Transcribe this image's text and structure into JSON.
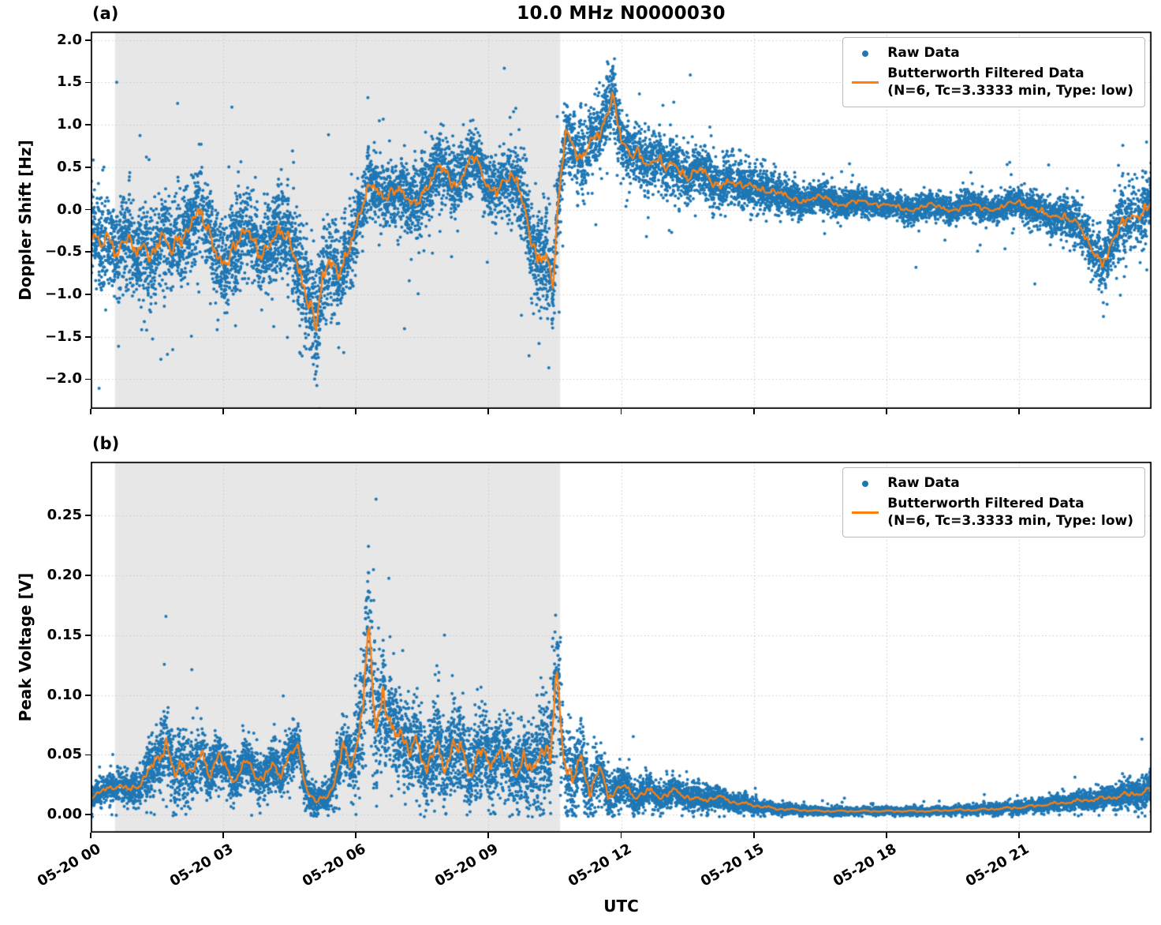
{
  "figure": {
    "title": "10.0 MHz N0000030",
    "xlabel": "UTC",
    "panels": {
      "a": {
        "tag": "(a)"
      },
      "b": {
        "tag": "(b)"
      }
    },
    "colors": {
      "raw": "#1f77b4",
      "filtered": "#ff7f0e",
      "shade": "#e7e7e7",
      "grid": "#c9c9c9",
      "spine": "#000000",
      "background": "#ffffff"
    }
  },
  "legend": {
    "raw_label": "Raw Data",
    "filtered_label": "Butterworth Filtered Data",
    "filtered_sublabel": "(N=6, Tc=3.3333 min, Type: low)"
  },
  "chart_data": [
    {
      "type": "scatter",
      "panel": "a",
      "title": "10.0 MHz N0000030",
      "ylabel": "Doppler Shift [Hz]",
      "xlabel": "UTC",
      "xlim_hours": [
        0,
        24
      ],
      "ylim": [
        -2.35,
        2.1
      ],
      "xticks_hours": [
        0,
        3,
        6,
        9,
        12,
        15,
        18,
        21
      ],
      "xtick_labels": [
        "05-20 00",
        "05-20 03",
        "05-20 06",
        "05-20 09",
        "05-20 12",
        "05-20 15",
        "05-20 18",
        "05-20 21"
      ],
      "yticks": [
        2.0,
        1.5,
        1.0,
        0.5,
        0.0,
        -0.5,
        -1.0,
        -1.5,
        -2.0
      ],
      "ytick_labels": [
        "2.0",
        "1.5",
        "1.0",
        "0.5",
        "0.0",
        "−0.5",
        "−1.0",
        "−1.5",
        "−2.0"
      ],
      "grid": true,
      "legend_position": "upper right",
      "shaded_region_hours": [
        0.55,
        10.62
      ],
      "series": [
        {
          "name": "Raw Data",
          "type": "scatter",
          "color": "#1f77b4"
        },
        {
          "name": "Butterworth Filtered Data (N=6, Tc=3.3333 min, Type: low)",
          "type": "line",
          "color": "#ff7f0e",
          "x_hours": [
            0,
            0.2,
            0.4,
            0.6,
            0.8,
            1.0,
            1.2,
            1.4,
            1.6,
            1.8,
            2.0,
            2.2,
            2.35,
            2.5,
            2.65,
            2.8,
            3.0,
            3.2,
            3.4,
            3.6,
            3.8,
            4.0,
            4.2,
            4.4,
            4.6,
            4.8,
            4.95,
            5.1,
            5.25,
            5.4,
            5.6,
            5.8,
            6.0,
            6.2,
            6.35,
            6.5,
            6.7,
            6.9,
            7.1,
            7.3,
            7.5,
            7.7,
            7.9,
            8.1,
            8.3,
            8.5,
            8.7,
            8.9,
            9.1,
            9.3,
            9.5,
            9.7,
            9.9,
            10.1,
            10.3,
            10.45,
            10.6,
            10.75,
            10.9,
            11.1,
            11.3,
            11.5,
            11.65,
            11.8,
            12.0,
            12.2,
            12.4,
            12.6,
            12.8,
            13.0,
            13.2,
            13.5,
            13.8,
            14.1,
            14.4,
            14.7,
            15.0,
            15.4,
            15.8,
            16.2,
            16.6,
            17.0,
            17.5,
            18.0,
            18.5,
            19.0,
            19.5,
            20.0,
            20.5,
            21.0,
            21.4,
            21.7,
            22.0,
            22.3,
            22.6,
            22.9,
            23.2,
            23.5,
            23.8,
            24.0
          ],
          "y": [
            -0.3,
            -0.45,
            -0.25,
            -0.5,
            -0.35,
            -0.55,
            -0.4,
            -0.5,
            -0.3,
            -0.55,
            -0.35,
            -0.2,
            0.0,
            -0.1,
            -0.3,
            -0.5,
            -0.6,
            -0.45,
            -0.35,
            -0.3,
            -0.5,
            -0.4,
            -0.3,
            -0.35,
            -0.5,
            -0.8,
            -1.1,
            -1.4,
            -0.9,
            -0.6,
            -0.7,
            -0.5,
            -0.25,
            0.1,
            0.35,
            0.25,
            0.15,
            0.2,
            0.15,
            0.1,
            0.2,
            0.3,
            0.5,
            0.4,
            0.3,
            0.5,
            0.6,
            0.35,
            0.25,
            0.3,
            0.35,
            0.25,
            -0.15,
            -0.55,
            -0.6,
            -0.95,
            0.2,
            1.0,
            0.8,
            0.55,
            0.75,
            0.9,
            1.1,
            1.4,
            0.8,
            0.6,
            0.7,
            0.55,
            0.6,
            0.45,
            0.55,
            0.4,
            0.45,
            0.3,
            0.35,
            0.25,
            0.3,
            0.2,
            0.15,
            0.1,
            0.15,
            0.05,
            0.1,
            0.05,
            0.0,
            0.05,
            0.0,
            0.05,
            0.0,
            0.1,
            0.0,
            -0.1,
            -0.05,
            -0.15,
            -0.45,
            -0.6,
            -0.3,
            -0.1,
            0.0,
            0.1
          ]
        }
      ],
      "raw_scatter_model": {
        "seed": 1337,
        "n_points": 12000,
        "raw_max": 1.9,
        "raw_min": -2.15,
        "envelope_x_hours": [
          0,
          2,
          4,
          4.8,
          5.1,
          5.5,
          6,
          7,
          8,
          9,
          9.8,
          10.3,
          10.7,
          11.5,
          12,
          13,
          14,
          15,
          16,
          17,
          18,
          19,
          20,
          21,
          21.8,
          22.5,
          23,
          23.5,
          24
        ],
        "envelope_halfwidth": [
          0.42,
          0.45,
          0.42,
          0.5,
          0.55,
          0.45,
          0.35,
          0.32,
          0.32,
          0.3,
          0.4,
          0.5,
          0.35,
          0.35,
          0.3,
          0.28,
          0.25,
          0.2,
          0.16,
          0.13,
          0.12,
          0.12,
          0.12,
          0.14,
          0.18,
          0.22,
          0.3,
          0.32,
          0.3
        ]
      }
    },
    {
      "type": "scatter",
      "panel": "b",
      "title": "",
      "ylabel": "Peak Voltage [V]",
      "xlabel": "UTC",
      "xlim_hours": [
        0,
        24
      ],
      "ylim": [
        -0.015,
        0.295
      ],
      "xticks_hours": [
        0,
        3,
        6,
        9,
        12,
        15,
        18,
        21
      ],
      "xtick_labels": [
        "05-20 00",
        "05-20 03",
        "05-20 06",
        "05-20 09",
        "05-20 12",
        "05-20 15",
        "05-20 18",
        "05-20 21"
      ],
      "yticks": [
        0.25,
        0.2,
        0.15,
        0.1,
        0.05,
        0.0
      ],
      "ytick_labels": [
        "0.25",
        "0.20",
        "0.15",
        "0.10",
        "0.05",
        "0.00"
      ],
      "grid": true,
      "legend_position": "upper right",
      "shaded_region_hours": [
        0.55,
        10.62
      ],
      "series": [
        {
          "name": "Raw Data",
          "type": "scatter",
          "color": "#1f77b4"
        },
        {
          "name": "Butterworth Filtered Data (N=6, Tc=3.3333 min, Type: low)",
          "type": "line",
          "color": "#ff7f0e",
          "x_hours": [
            0,
            0.3,
            0.6,
            0.9,
            1.2,
            1.5,
            1.7,
            1.9,
            2.1,
            2.3,
            2.5,
            2.7,
            2.9,
            3.1,
            3.3,
            3.5,
            3.7,
            3.9,
            4.1,
            4.3,
            4.5,
            4.7,
            4.9,
            5.1,
            5.3,
            5.5,
            5.7,
            5.9,
            6.1,
            6.3,
            6.45,
            6.6,
            6.8,
            7.0,
            7.2,
            7.4,
            7.6,
            7.8,
            8.0,
            8.2,
            8.4,
            8.6,
            8.8,
            9.0,
            9.2,
            9.4,
            9.6,
            9.8,
            10.0,
            10.2,
            10.4,
            10.55,
            10.7,
            10.9,
            11.1,
            11.3,
            11.5,
            11.7,
            12.0,
            12.3,
            12.6,
            12.9,
            13.2,
            13.5,
            13.8,
            14.2,
            14.6,
            15.0,
            15.5,
            16.0,
            16.5,
            17.0,
            17.5,
            18.0,
            18.5,
            19.0,
            19.5,
            20.0,
            20.5,
            21.0,
            21.5,
            22.0,
            22.5,
            23.0,
            23.5,
            24.0
          ],
          "y": [
            0.015,
            0.02,
            0.025,
            0.02,
            0.03,
            0.045,
            0.063,
            0.03,
            0.045,
            0.035,
            0.05,
            0.035,
            0.05,
            0.035,
            0.03,
            0.045,
            0.035,
            0.03,
            0.04,
            0.035,
            0.05,
            0.055,
            0.02,
            0.01,
            0.015,
            0.025,
            0.055,
            0.045,
            0.07,
            0.15,
            0.08,
            0.1,
            0.065,
            0.075,
            0.05,
            0.06,
            0.04,
            0.055,
            0.04,
            0.06,
            0.05,
            0.035,
            0.055,
            0.04,
            0.055,
            0.045,
            0.035,
            0.05,
            0.03,
            0.06,
            0.05,
            0.113,
            0.05,
            0.03,
            0.045,
            0.02,
            0.04,
            0.015,
            0.025,
            0.015,
            0.02,
            0.015,
            0.02,
            0.015,
            0.012,
            0.015,
            0.01,
            0.008,
            0.005,
            0.004,
            0.003,
            0.003,
            0.003,
            0.003,
            0.003,
            0.003,
            0.004,
            0.004,
            0.005,
            0.006,
            0.008,
            0.01,
            0.012,
            0.014,
            0.017,
            0.02
          ]
        }
      ],
      "raw_scatter_model": {
        "seed": 2024,
        "n_points": 12000,
        "raw_max": 0.285,
        "raw_min": 0.0,
        "envelope_x_hours": [
          0,
          1,
          1.7,
          2.5,
          3.5,
          4.5,
          5.2,
          5.9,
          6.4,
          7,
          8,
          9,
          10,
          10.5,
          11,
          11.5,
          12,
          13,
          14,
          15,
          16,
          17,
          18,
          19,
          20,
          21,
          22,
          23,
          24
        ],
        "envelope_halfwidth": [
          0.008,
          0.012,
          0.03,
          0.02,
          0.015,
          0.018,
          0.008,
          0.025,
          0.06,
          0.03,
          0.03,
          0.028,
          0.03,
          0.045,
          0.025,
          0.02,
          0.012,
          0.01,
          0.008,
          0.005,
          0.003,
          0.0025,
          0.0025,
          0.0025,
          0.003,
          0.004,
          0.005,
          0.007,
          0.012
        ]
      }
    }
  ]
}
